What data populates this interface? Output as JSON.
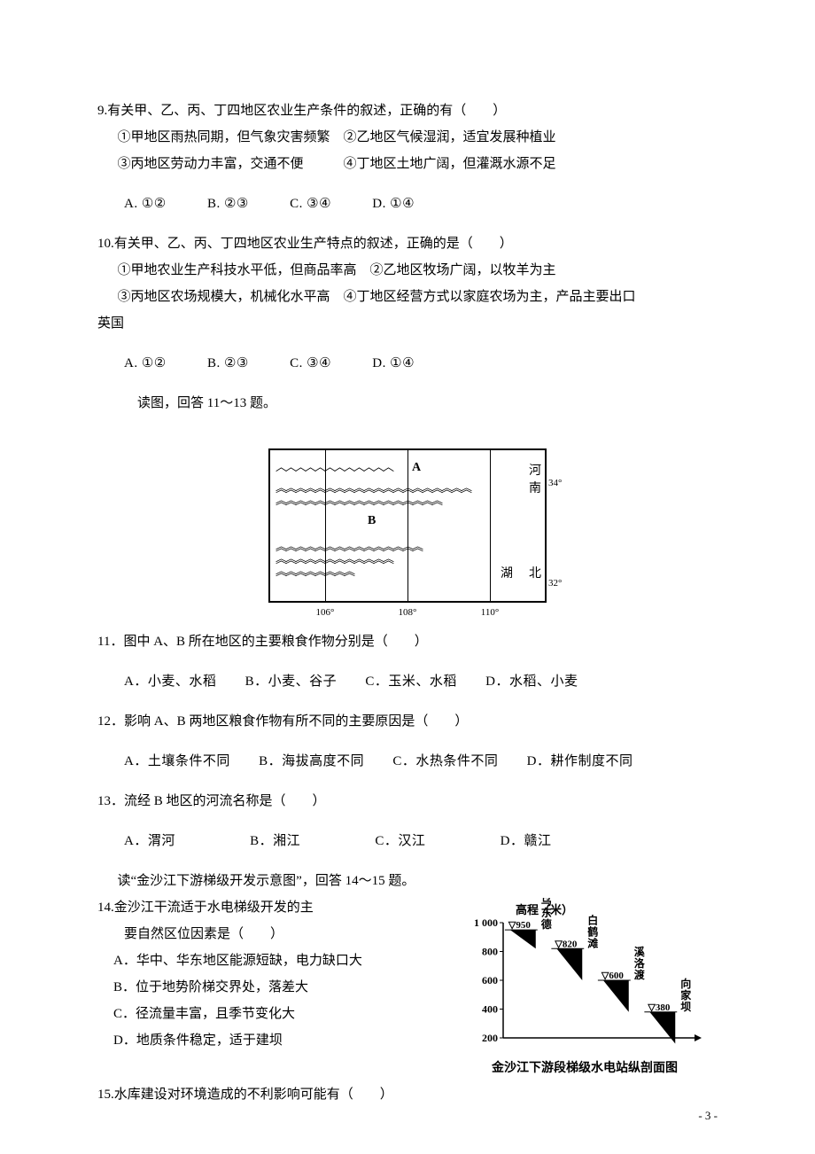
{
  "q9": {
    "stem": "9.有关甲、乙、丙、丁四地区农业生产条件的叙述，正确的有（　　）",
    "s1": "①甲地区雨热同期，但气象灾害频繁　②乙地区气候湿润，适宜发展种植业",
    "s2": "③丙地区劳动力丰富，交通不便　　　④丁地区土地广阔，但灌溉水源不足",
    "optA": "A. ①②",
    "optB": "B. ②③",
    "optC": "C. ③④",
    "optD": "D. ①④"
  },
  "q10": {
    "stem": "10.有关甲、乙、丙、丁四地区农业生产特点的叙述，正确的是（　　）",
    "s1": "①甲地农业生产科技水平低，但商品率高　②乙地区牧场广阔，以牧羊为主",
    "s2": "③丙地区农场规模大，机械化水平高　④丁地区经营方式以家庭农场为主，产品主要出口",
    "s2tail": "英国",
    "optA": "A. ①②",
    "optB": "B. ②③",
    "optC": "C. ③④",
    "optD": "D. ①④"
  },
  "readNote1": "读图，回答 11～13 题。",
  "map": {
    "labelA": "A",
    "labelB": "B",
    "sideTop": "河",
    "sideTop2": "南",
    "sideBot": "湖",
    "sideBot2": "北",
    "lon1": "106°",
    "lon2": "108°",
    "lon3": "110°",
    "lat1": "34°",
    "lat2": "32°"
  },
  "q11": {
    "stem": "11．图中 A、B 所在地区的主要粮食作物分别是（　　）",
    "optA": "A．小麦、水稻",
    "optB": "B．小麦、谷子",
    "optC": "C．玉米、水稻",
    "optD": "D．水稻、小麦"
  },
  "q12": {
    "stem": "12．影响 A、B 两地区粮食作物有所不同的主要原因是（　　）",
    "optA": "A．土壤条件不同",
    "optB": "B．海拔高度不同",
    "optC": "C．水热条件不同",
    "optD": "D．耕作制度不同"
  },
  "q13": {
    "stem": "13．流经 B 地区的河流名称是（　　）",
    "optA": "A．渭河",
    "optB": "B．湘江",
    "optC": "C．汉江",
    "optD": "D．赣江"
  },
  "readNote2": "读“金沙江下游梯级开发示意图”，回答 14～15 题。",
  "q14": {
    "stem": "14.金沙江干流适于水电梯级开发的主",
    "stem2": "要自然区位因素是（　　）",
    "optA": "A．华中、华东地区能源短缺，电力缺口大",
    "optB": "B．位于地势阶梯交界处，落差大",
    "optC": "C．径流量丰富，且季节变化大",
    "optD": "D．地质条件稳定，适于建坝"
  },
  "chart": {
    "ylabel": "高程（米）",
    "yTicks": [
      200,
      400,
      600,
      800,
      1000
    ],
    "yMin": 200,
    "yMax": 1000,
    "dams": [
      {
        "name": "乌东德",
        "level": 950,
        "labelDx": -6
      },
      {
        "name": "白鹤滩",
        "level": 820,
        "labelDx": -4
      },
      {
        "name": "溪洛渡",
        "level": 600,
        "labelDx": -4
      },
      {
        "name": "向家坝",
        "level": 380,
        "labelDx": -4
      }
    ],
    "plotW": 210,
    "plotH": 130,
    "axisColor": "#000",
    "damFill": "#000",
    "title": "金沙江下游段梯级水电站纵剖面图"
  },
  "q15": {
    "stem": "15.水库建设对环境造成的不利影响可能有（　　）"
  },
  "footer": "- 3 -"
}
